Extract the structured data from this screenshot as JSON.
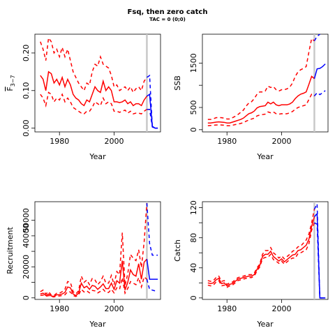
{
  "figure": {
    "title": "Fsq, then zero catch",
    "subtitle": "TAC = 0 (0;0)"
  },
  "colors": {
    "historical": "#ff0000",
    "projection": "#0000ff",
    "vline": "#c8c8c8"
  },
  "chart_data": [
    {
      "type": "line",
      "panel": "top-left",
      "xlabel": "Year",
      "ylabel_main": "F",
      "ylabel_sub": "3−7",
      "xlim": [
        1971,
        2017
      ],
      "ylim": [
        -0.01,
        0.25
      ],
      "xticks": [
        1980,
        2000
      ],
      "yticks": [
        0.0,
        0.1,
        0.2
      ],
      "ytick_labels": [
        "0.00",
        "0.10",
        "0.20"
      ],
      "vline_x": 2012,
      "historical": {
        "x": [
          1973,
          1974,
          1975,
          1976,
          1977,
          1978,
          1979,
          1980,
          1981,
          1982,
          1983,
          1984,
          1985,
          1986,
          1987,
          1988,
          1989,
          1990,
          1991,
          1992,
          1993,
          1994,
          1995,
          1996,
          1997,
          1998,
          1999,
          2000,
          2001,
          2002,
          2003,
          2004,
          2005,
          2006,
          2007,
          2008,
          2009,
          2010,
          2011,
          2012
        ],
        "median": [
          0.14,
          0.13,
          0.1,
          0.15,
          0.145,
          0.12,
          0.13,
          0.115,
          0.135,
          0.11,
          0.13,
          0.115,
          0.09,
          0.08,
          0.075,
          0.065,
          0.06,
          0.075,
          0.07,
          0.09,
          0.11,
          0.1,
          0.095,
          0.125,
          0.1,
          0.11,
          0.1,
          0.07,
          0.07,
          0.068,
          0.07,
          0.075,
          0.065,
          0.07,
          0.06,
          0.065,
          0.065,
          0.06,
          0.075,
          0.085
        ],
        "upper": [
          0.23,
          0.21,
          0.18,
          0.24,
          0.23,
          0.2,
          0.21,
          0.19,
          0.215,
          0.19,
          0.21,
          0.18,
          0.15,
          0.135,
          0.12,
          0.11,
          0.1,
          0.12,
          0.115,
          0.15,
          0.17,
          0.165,
          0.19,
          0.17,
          0.165,
          0.16,
          0.14,
          0.11,
          0.115,
          0.1,
          0.105,
          0.11,
          0.1,
          0.11,
          0.095,
          0.105,
          0.11,
          0.1,
          0.125,
          0.135
        ],
        "lower": [
          0.09,
          0.08,
          0.06,
          0.095,
          0.09,
          0.07,
          0.08,
          0.075,
          0.09,
          0.07,
          0.08,
          0.07,
          0.055,
          0.05,
          0.045,
          0.04,
          0.038,
          0.045,
          0.045,
          0.055,
          0.07,
          0.065,
          0.06,
          0.08,
          0.065,
          0.07,
          0.065,
          0.045,
          0.045,
          0.042,
          0.045,
          0.048,
          0.04,
          0.045,
          0.038,
          0.04,
          0.04,
          0.038,
          0.045,
          0.05
        ]
      },
      "projection": {
        "x": [
          2012,
          2013,
          2014,
          2015,
          2016
        ],
        "median": [
          0.085,
          0.09,
          0.005,
          0.0,
          0.0
        ],
        "upper": [
          0.135,
          0.14,
          0.005,
          0.0,
          0.0
        ],
        "lower": [
          0.05,
          0.05,
          0.003,
          0.0,
          0.0
        ]
      }
    },
    {
      "type": "line",
      "panel": "top-right",
      "xlabel": "Year",
      "ylabel_main": "SSB",
      "ylabel_sub": "",
      "xlim": [
        1971,
        2017
      ],
      "ylim": [
        -50,
        2150
      ],
      "xticks": [
        1980,
        2000
      ],
      "yticks": [
        0,
        500,
        1000,
        1500
      ],
      "ytick_labels": [
        "0",
        "500",
        "",
        "1500"
      ],
      "vline_x": 2012,
      "historical": {
        "x": [
          1973,
          1974,
          1975,
          1976,
          1977,
          1978,
          1979,
          1980,
          1981,
          1982,
          1983,
          1984,
          1985,
          1986,
          1987,
          1988,
          1989,
          1990,
          1991,
          1992,
          1993,
          1994,
          1995,
          1996,
          1997,
          1998,
          1999,
          2000,
          2001,
          2002,
          2003,
          2004,
          2005,
          2006,
          2007,
          2008,
          2009,
          2010,
          2011,
          2012
        ],
        "median": [
          150,
          150,
          160,
          170,
          175,
          170,
          165,
          150,
          150,
          170,
          190,
          210,
          230,
          260,
          310,
          360,
          380,
          420,
          490,
          520,
          530,
          540,
          620,
          580,
          620,
          560,
          540,
          560,
          560,
          560,
          580,
          620,
          700,
          760,
          800,
          820,
          850,
          1020,
          1200,
          1150
        ],
        "upper": [
          230,
          230,
          245,
          270,
          275,
          270,
          260,
          240,
          240,
          270,
          300,
          340,
          390,
          440,
          530,
          600,
          630,
          700,
          800,
          850,
          850,
          870,
          980,
          950,
          970,
          900,
          870,
          900,
          900,
          920,
          960,
          1050,
          1200,
          1300,
          1350,
          1380,
          1420,
          1750,
          2050,
          2000
        ],
        "lower": [
          90,
          95,
          100,
          105,
          110,
          105,
          100,
          90,
          90,
          100,
          115,
          125,
          140,
          160,
          190,
          220,
          240,
          260,
          310,
          330,
          340,
          350,
          400,
          380,
          400,
          360,
          350,
          360,
          355,
          360,
          380,
          410,
          460,
          500,
          520,
          540,
          560,
          680,
          800,
          760
        ]
      },
      "projection": {
        "x": [
          2012,
          2013,
          2014,
          2015,
          2016
        ],
        "median": [
          1150,
          1370,
          1380,
          1420,
          1480
        ],
        "upper": [
          2000,
          2100,
          2150,
          2200,
          2250
        ],
        "lower": [
          760,
          830,
          790,
          830,
          880
        ]
      }
    },
    {
      "type": "line",
      "panel": "bottom-left",
      "xlabel": "Year",
      "ylabel_main": "Recruitment",
      "ylabel_sub": "",
      "xlim": [
        1971,
        2017
      ],
      "ylim": [
        -1000,
        62000
      ],
      "xticks": [
        1980,
        2000
      ],
      "yticks": [
        0,
        10000,
        20000,
        30000,
        40000,
        50000
      ],
      "ytick_labels": [
        "0",
        "",
        "20000",
        "",
        "40000",
        "50000"
      ],
      "vline_x": 2012,
      "historical": {
        "x": [
          1973,
          1974,
          1975,
          1976,
          1977,
          1978,
          1979,
          1980,
          1981,
          1982,
          1983,
          1984,
          1985,
          1986,
          1987,
          1988,
          1989,
          1990,
          1991,
          1992,
          1993,
          1994,
          1995,
          1996,
          1997,
          1998,
          1999,
          2000,
          2001,
          2002,
          2003,
          2004,
          2005,
          2006,
          2007,
          2008,
          2009,
          2010,
          2011,
          2012
        ],
        "median": [
          2500,
          3000,
          1500,
          2500,
          1200,
          1000,
          2000,
          2000,
          2500,
          3500,
          7000,
          6500,
          2500,
          1500,
          3000,
          9500,
          6500,
          7500,
          5500,
          8000,
          7500,
          5500,
          7000,
          9000,
          6000,
          6000,
          9500,
          5500,
          11000,
          9500,
          24000,
          5000,
          10000,
          18000,
          15000,
          14000,
          22000,
          12000,
          23000,
          25000
        ],
        "upper": [
          4000,
          5000,
          2500,
          4000,
          1800,
          1500,
          3000,
          3000,
          4000,
          5500,
          10500,
          10000,
          4000,
          2500,
          4500,
          14000,
          10000,
          11500,
          8500,
          12500,
          11500,
          8500,
          10500,
          14000,
          9500,
          9500,
          14500,
          8500,
          17000,
          15000,
          42000,
          8000,
          15500,
          28000,
          25500,
          24000,
          31000,
          19500,
          36000,
          61000
        ],
        "lower": [
          1500,
          1800,
          900,
          1500,
          700,
          600,
          1200,
          1200,
          1500,
          2000,
          4000,
          3800,
          1500,
          900,
          1800,
          5500,
          3800,
          4500,
          3200,
          4800,
          4500,
          3200,
          4200,
          5500,
          3500,
          3500,
          5500,
          3200,
          6500,
          5500,
          13000,
          3000,
          6000,
          10500,
          9500,
          8500,
          13000,
          7000,
          13500,
          12000
        ]
      },
      "projection": {
        "x": [
          2012,
          2013,
          2014,
          2015,
          2016
        ],
        "median": [
          25000,
          12000,
          12000,
          12000,
          12000
        ],
        "upper": [
          61000,
          35000,
          27500,
          27500,
          27500
        ],
        "lower": [
          12000,
          5500,
          5000,
          4500,
          4500
        ]
      }
    },
    {
      "type": "line",
      "panel": "bottom-right",
      "xlabel": "Year",
      "ylabel_main": "Catch",
      "ylabel_sub": "",
      "xlim": [
        1971,
        2017
      ],
      "ylim": [
        -2,
        128
      ],
      "xticks": [
        1980,
        2000
      ],
      "yticks": [
        0,
        20,
        40,
        60,
        80,
        100,
        120
      ],
      "ytick_labels": [
        "0",
        "",
        "40",
        "",
        "80",
        "",
        "120"
      ],
      "vline_x": 2012,
      "historical": {
        "x": [
          1973,
          1974,
          1975,
          1976,
          1977,
          1978,
          1979,
          1980,
          1981,
          1982,
          1983,
          1984,
          1985,
          1986,
          1987,
          1988,
          1989,
          1990,
          1991,
          1992,
          1993,
          1994,
          1995,
          1996,
          1997,
          1998,
          1999,
          2000,
          2001,
          2002,
          2003,
          2004,
          2005,
          2006,
          2007,
          2008,
          2009,
          2010,
          2011,
          2012
        ],
        "median": [
          20,
          19,
          20,
          24,
          26,
          19,
          20,
          16,
          18,
          19,
          22,
          25,
          26,
          27,
          28,
          29,
          29,
          31,
          38,
          43,
          55,
          58,
          58,
          62,
          55,
          52,
          49,
          52,
          48,
          51,
          54,
          57,
          58,
          63,
          64,
          67,
          70,
          78,
          95,
          108
        ],
        "upper": [
          23,
          22,
          23,
          27,
          29,
          22,
          23,
          18,
          20,
          21,
          24,
          27,
          28,
          29,
          30,
          31,
          31,
          33,
          40,
          45,
          58,
          63,
          63,
          67,
          60,
          57,
          53,
          56,
          52,
          55,
          58,
          62,
          64,
          68,
          69,
          73,
          77,
          85,
          100,
          118
        ],
        "lower": [
          17,
          16,
          17,
          21,
          23,
          16,
          17,
          14,
          16,
          17,
          20,
          23,
          24,
          25,
          26,
          27,
          27,
          29,
          36,
          41,
          52,
          54,
          54,
          58,
          51,
          49,
          46,
          49,
          45,
          48,
          51,
          53,
          53,
          59,
          60,
          62,
          64,
          72,
          90,
          100
        ]
      },
      "projection": {
        "x": [
          2012,
          2013,
          2014,
          2015,
          2016
        ],
        "median": [
          108,
          112,
          0,
          0,
          0
        ],
        "upper": [
          118,
          125,
          0,
          0,
          0
        ],
        "lower": [
          100,
          98,
          0,
          0,
          0
        ]
      }
    }
  ]
}
